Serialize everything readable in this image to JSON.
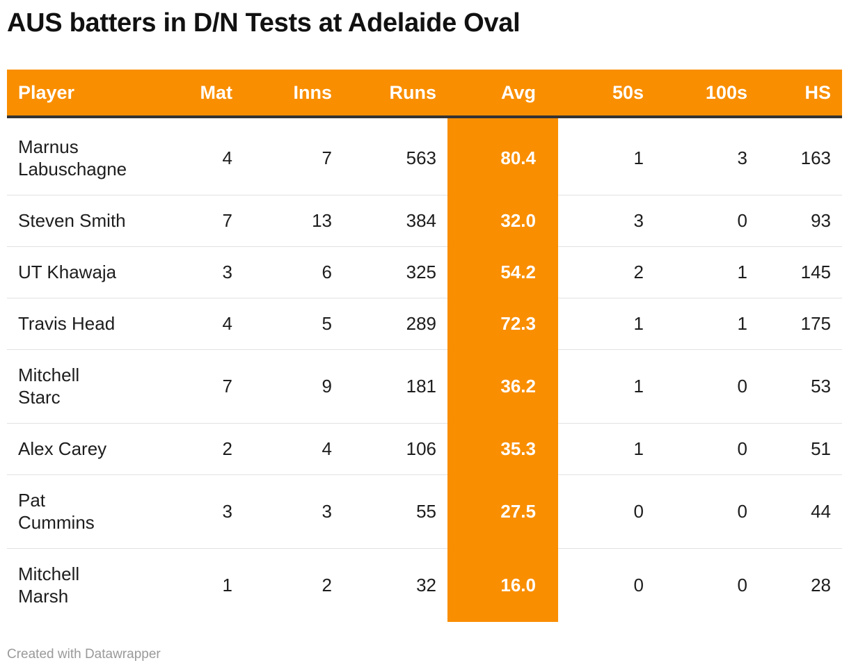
{
  "title": "AUS batters in D/N Tests at Adelaide Oval",
  "footer": "Created with Datawrapper",
  "colors": {
    "header_bg": "#f98e00",
    "avg_column_bg": "#f98e00",
    "header_rule": "#333333",
    "row_divider": "#e2e2e2"
  },
  "chart_data": {
    "type": "table",
    "title": "AUS batters in D/N Tests at Adelaide Oval",
    "columns": [
      "Player",
      "Mat",
      "Inns",
      "Runs",
      "Avg",
      "50s",
      "100s",
      "HS"
    ],
    "highlight_column": "Avg",
    "rows": [
      {
        "player": [
          "Marnus",
          "Labuschagne"
        ],
        "mat": "4",
        "inns": "7",
        "runs": "563",
        "avg": "80.4",
        "fifties": "1",
        "hundreds": "3",
        "hs": "163"
      },
      {
        "player": [
          "Steven Smith"
        ],
        "mat": "7",
        "inns": "13",
        "runs": "384",
        "avg": "32.0",
        "fifties": "3",
        "hundreds": "0",
        "hs": "93"
      },
      {
        "player": [
          "UT Khawaja"
        ],
        "mat": "3",
        "inns": "6",
        "runs": "325",
        "avg": "54.2",
        "fifties": "2",
        "hundreds": "1",
        "hs": "145"
      },
      {
        "player": [
          "Travis Head"
        ],
        "mat": "4",
        "inns": "5",
        "runs": "289",
        "avg": "72.3",
        "fifties": "1",
        "hundreds": "1",
        "hs": "175"
      },
      {
        "player": [
          "Mitchell",
          "Starc"
        ],
        "mat": "7",
        "inns": "9",
        "runs": "181",
        "avg": "36.2",
        "fifties": "1",
        "hundreds": "0",
        "hs": "53"
      },
      {
        "player": [
          "Alex Carey"
        ],
        "mat": "2",
        "inns": "4",
        "runs": "106",
        "avg": "35.3",
        "fifties": "1",
        "hundreds": "0",
        "hs": "51"
      },
      {
        "player": [
          "Pat",
          "Cummins"
        ],
        "mat": "3",
        "inns": "3",
        "runs": "55",
        "avg": "27.5",
        "fifties": "0",
        "hundreds": "0",
        "hs": "44"
      },
      {
        "player": [
          "Mitchell",
          "Marsh"
        ],
        "mat": "1",
        "inns": "2",
        "runs": "32",
        "avg": "16.0",
        "fifties": "0",
        "hundreds": "0",
        "hs": "28"
      }
    ]
  }
}
